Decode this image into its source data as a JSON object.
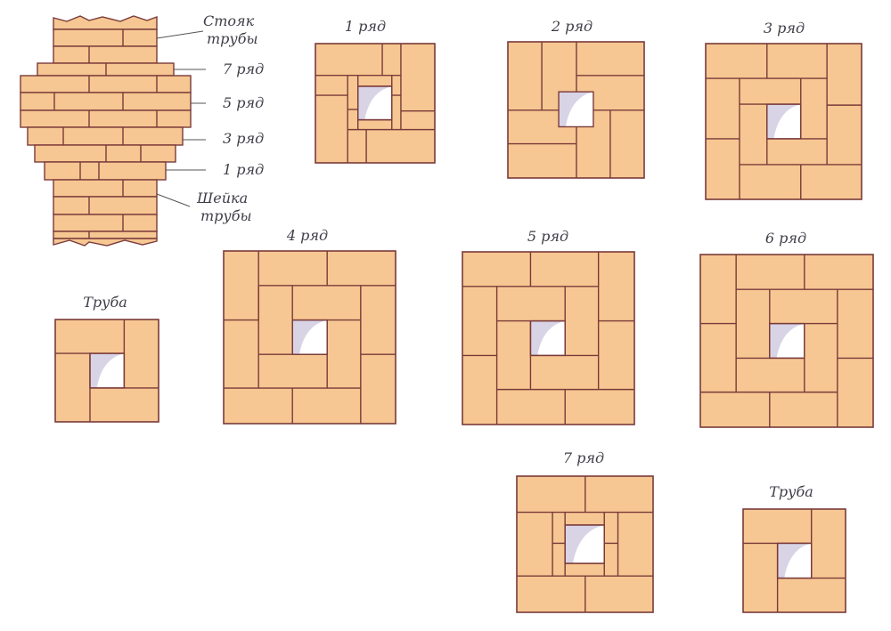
{
  "colors": {
    "brick": "#f6c792",
    "joint": "#7a3a3a",
    "hole": "#ffffff",
    "hole_shade": "#d8d4e6",
    "text": "#3e3e48"
  },
  "elevation": {
    "labels": {
      "riser_line1": "Стояк",
      "riser_line2": "трубы",
      "row7": "7 ряд",
      "row5": "5 ряд",
      "row3": "3 ряд",
      "row1": "1 ряд",
      "neck_line1": "Шейка",
      "neck_line2": "трубы"
    }
  },
  "diagrams": [
    {
      "id": "row1",
      "title": "1 ряд"
    },
    {
      "id": "row2",
      "title": "2 ряд"
    },
    {
      "id": "row3",
      "title": "3 ряд"
    },
    {
      "id": "row4",
      "title": "4 ряд"
    },
    {
      "id": "row5",
      "title": "5 ряд"
    },
    {
      "id": "row6",
      "title": "6 ряд"
    },
    {
      "id": "row7",
      "title": "7 ряд"
    },
    {
      "id": "pipe-left",
      "title": "Труба"
    },
    {
      "id": "pipe-right",
      "title": "Труба"
    }
  ]
}
